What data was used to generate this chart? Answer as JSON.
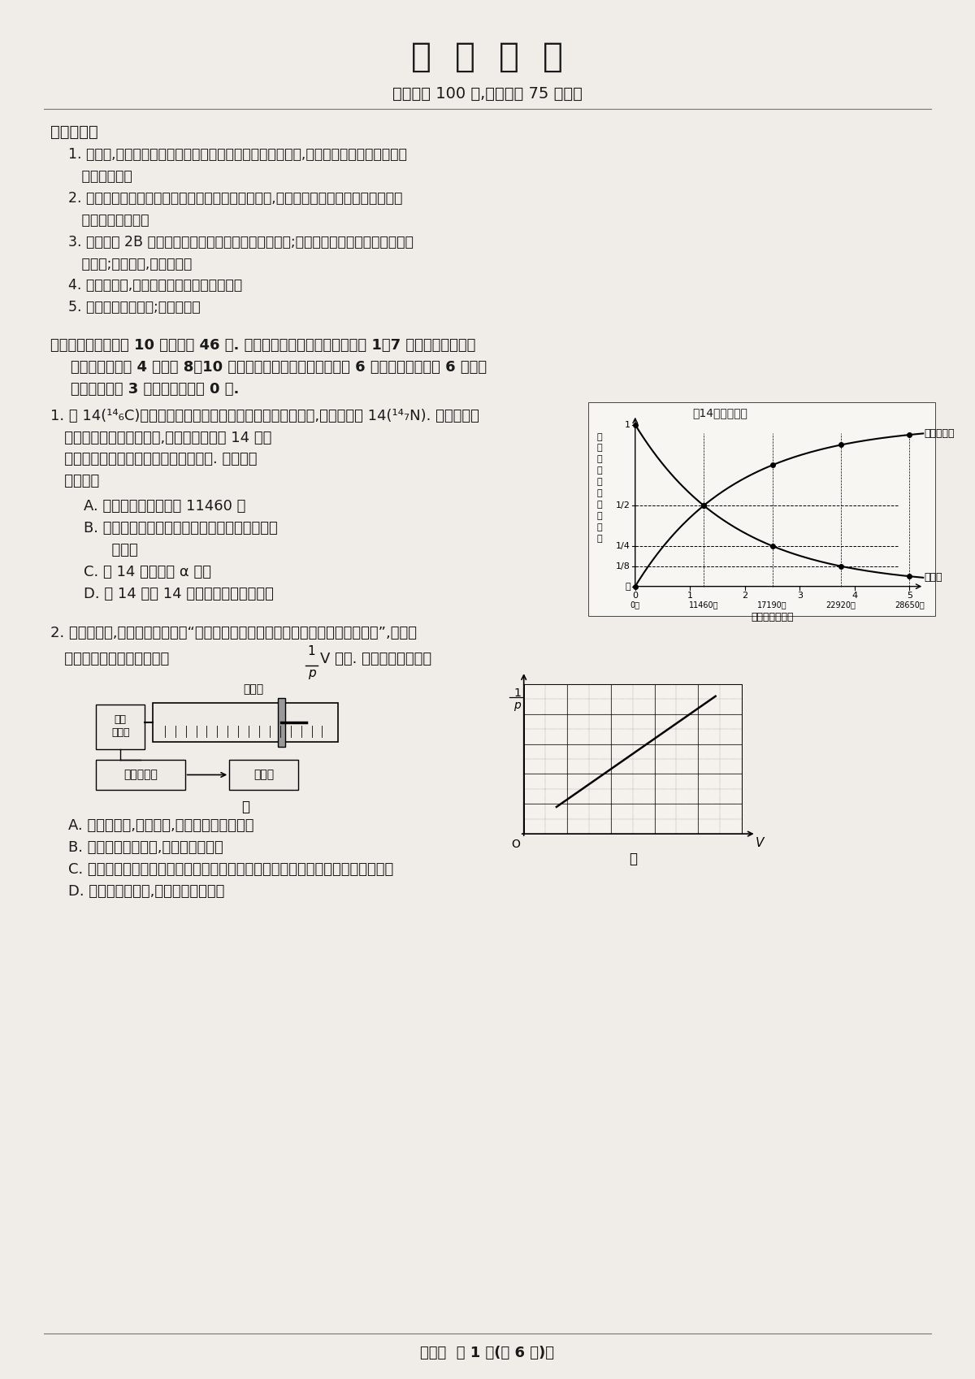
{
  "title": "物  理  考  试",
  "subtitle": "全卷满分 100 分,考试时间 75 分钟。",
  "bg_color": "#f0ede8",
  "text_color": "#1a1a1a",
  "figsize": [
    12.0,
    16.97
  ],
  "dpi": 100,
  "notes_title": "注意事项：",
  "footer": "【物理  第 1 页(共 6 页)】"
}
